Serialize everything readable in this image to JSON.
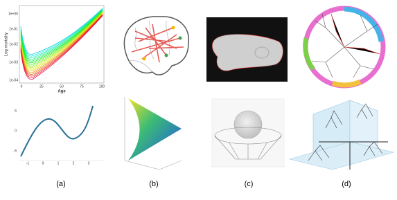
{
  "figure": {
    "panels": [
      {
        "label": "(a)"
      },
      {
        "label": "(b)"
      },
      {
        "label": "(c)"
      },
      {
        "label": "(d)"
      }
    ],
    "mortality_plot": {
      "y_label": "Log mortality",
      "x_label": "Age",
      "x_ticks": [
        "0",
        "25",
        "50",
        "75",
        "100"
      ],
      "y_ticks": [
        "1e+00",
        "1e-01",
        "1e-02",
        "1e-03",
        "1e-04"
      ]
    },
    "cubic_plot": {
      "x_ticks": [
        "-1",
        "0",
        "1",
        "2",
        "3"
      ],
      "y_ticks": [
        "5",
        "0",
        "-5"
      ]
    }
  }
}
